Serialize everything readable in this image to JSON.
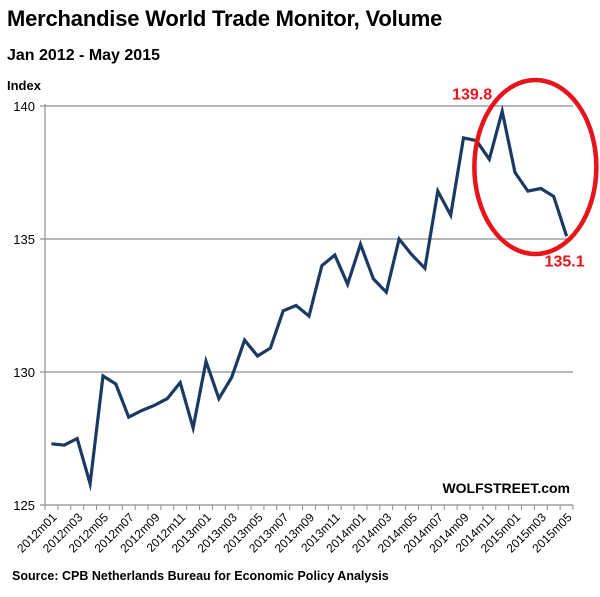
{
  "chart_data": {
    "type": "line",
    "title": "Merchandise World Trade Monitor, Volume",
    "subtitle": "Jan 2012 - May 2015",
    "ylabel": "Index",
    "xlabel": "",
    "ylim": [
      125,
      140
    ],
    "yticks": [
      "140",
      "135",
      "130",
      "125"
    ],
    "grid": true,
    "x": [
      "2012m01",
      "2012m02",
      "2012m03",
      "2012m04",
      "2012m05",
      "2012m06",
      "2012m07",
      "2012m08",
      "2012m09",
      "2012m10",
      "2012m11",
      "2012m12",
      "2013m01",
      "2013m02",
      "2013m03",
      "2013m04",
      "2013m05",
      "2013m06",
      "2013m07",
      "2013m08",
      "2013m09",
      "2013m10",
      "2013m11",
      "2013m12",
      "2014m01",
      "2014m02",
      "2014m03",
      "2014m04",
      "2014m05",
      "2014m06",
      "2014m07",
      "2014m08",
      "2014m09",
      "2014m10",
      "2014m11",
      "2014m12",
      "2015m01",
      "2015m02",
      "2015m03",
      "2015m04",
      "2015m05"
    ],
    "xtick_labels": [
      "2012m01",
      "2012m03",
      "2012m05",
      "2012m07",
      "2012m09",
      "2012m11",
      "2013m01",
      "2013m03",
      "2013m05",
      "2013m07",
      "2013m09",
      "2013m11",
      "2014m01",
      "2014m03",
      "2014m05",
      "2014m07",
      "2014m09",
      "2014m11",
      "2015m01",
      "2015m03",
      "2015m05"
    ],
    "series": [
      {
        "name": "Merchandise World Trade Volume",
        "color": "#1a3a63",
        "values": [
          127.3,
          127.25,
          127.5,
          125.8,
          129.85,
          129.55,
          128.3,
          128.55,
          128.75,
          129.0,
          129.6,
          127.9,
          130.4,
          129.0,
          129.8,
          131.2,
          130.6,
          130.9,
          132.3,
          132.5,
          132.1,
          134.0,
          134.4,
          133.3,
          134.8,
          133.5,
          133.0,
          135.0,
          134.4,
          133.9,
          136.8,
          135.9,
          138.8,
          138.7,
          138.0,
          139.8,
          137.5,
          136.8,
          136.9,
          136.6,
          135.1
        ]
      }
    ],
    "annotations": [
      {
        "text": "139.8",
        "at": "2014m12",
        "color": "#e8141c"
      },
      {
        "text": "135.1",
        "at": "2015m05",
        "color": "#e8141c"
      }
    ],
    "highlight_ellipse": {
      "from": "2014m12",
      "to": "2015m05",
      "color": "#e8141c"
    },
    "watermark": "WOLFSTREET.com",
    "source": "Source: CPB Netherlands Bureau for Economic Policy Analysis"
  }
}
